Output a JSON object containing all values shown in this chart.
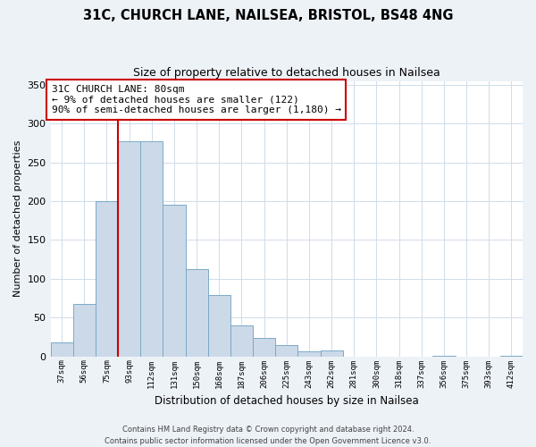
{
  "title": "31C, CHURCH LANE, NAILSEA, BRISTOL, BS48 4NG",
  "subtitle": "Size of property relative to detached houses in Nailsea",
  "xlabel": "Distribution of detached houses by size in Nailsea",
  "ylabel": "Number of detached properties",
  "bin_labels": [
    "37sqm",
    "56sqm",
    "75sqm",
    "93sqm",
    "112sqm",
    "131sqm",
    "150sqm",
    "168sqm",
    "187sqm",
    "206sqm",
    "225sqm",
    "243sqm",
    "262sqm",
    "281sqm",
    "300sqm",
    "318sqm",
    "337sqm",
    "356sqm",
    "375sqm",
    "393sqm",
    "412sqm"
  ],
  "bar_heights": [
    18,
    68,
    200,
    277,
    277,
    195,
    113,
    79,
    40,
    24,
    14,
    7,
    8,
    0,
    0,
    0,
    0,
    1,
    0,
    0,
    1
  ],
  "bar_color": "#ccd9e8",
  "bar_edge_color": "#7aaac8",
  "vline_x": 2.5,
  "vline_color": "#cc0000",
  "annotation_text": "31C CHURCH LANE: 80sqm\n← 9% of detached houses are smaller (122)\n90% of semi-detached houses are larger (1,180) →",
  "annotation_box_color": "#ffffff",
  "annotation_box_edge": "#cc0000",
  "ylim": [
    0,
    355
  ],
  "yticks": [
    0,
    50,
    100,
    150,
    200,
    250,
    300,
    350
  ],
  "footer1": "Contains HM Land Registry data © Crown copyright and database right 2024.",
  "footer2": "Contains public sector information licensed under the Open Government Licence v3.0.",
  "bg_color": "#edf2f7",
  "plot_bg_color": "#ffffff",
  "grid_color": "#d0dce8"
}
